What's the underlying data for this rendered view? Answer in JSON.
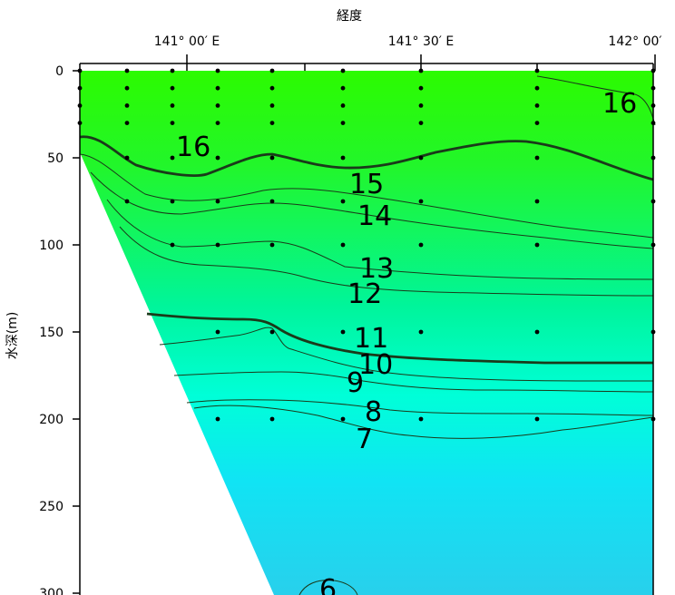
{
  "chart_data": {
    "type": "heatmap",
    "title": "",
    "xlabel": "経度",
    "ylabel": "水深(m)",
    "x_ticks": [
      "141° 00′ E",
      "141° 30′ E",
      "142° 00′"
    ],
    "y_ticks": [
      "0",
      "50",
      "100",
      "150",
      "200",
      "250",
      "300"
    ],
    "ylim": [
      0,
      300
    ],
    "y_inverted": true,
    "color_scale": {
      "low": "#00e0ff",
      "mid": "#00ffb0",
      "high": "#33ff00"
    },
    "contour_labels": [
      "16",
      "16",
      "15",
      "14",
      "13",
      "12",
      "11",
      "10",
      "9",
      "8",
      "7",
      "6"
    ],
    "emphasized_contours": [
      15,
      11
    ]
  }
}
